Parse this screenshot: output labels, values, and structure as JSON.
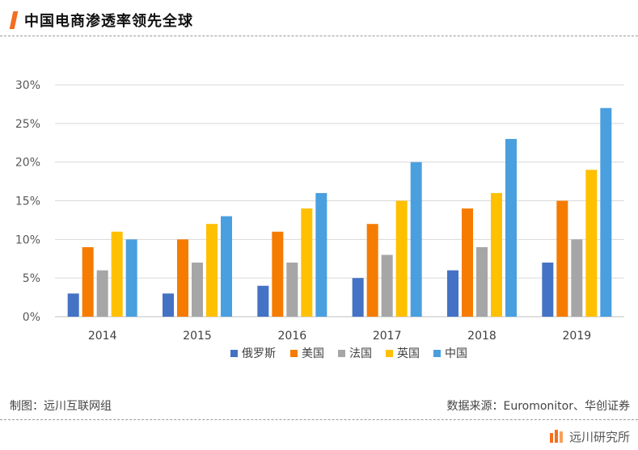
{
  "header": {
    "title": "中国电商渗透率领先全球"
  },
  "footer": {
    "made_by": "制图：远川互联网组",
    "source": "数据来源：Euromonitor、华创证券",
    "brand": "远川研究所"
  },
  "colors": {
    "accent": "#f36f21",
    "series": [
      "#4472c4",
      "#f57c00",
      "#a6a6a6",
      "#ffc000",
      "#4a9fdf"
    ]
  },
  "chart_data": {
    "type": "bar",
    "title": "",
    "xlabel": "",
    "ylabel": "",
    "ylim": [
      0,
      30
    ],
    "yticks": [
      "0%",
      "5%",
      "10%",
      "15%",
      "20%",
      "25%",
      "30%"
    ],
    "grid": true,
    "legend_position": "bottom",
    "categories": [
      "2014",
      "2015",
      "2016",
      "2017",
      "2018",
      "2019"
    ],
    "series": [
      {
        "name": "俄罗斯",
        "values": [
          3,
          3,
          4,
          5,
          6,
          7
        ]
      },
      {
        "name": "美国",
        "values": [
          9,
          10,
          11,
          12,
          14,
          15
        ]
      },
      {
        "name": "法国",
        "values": [
          6,
          7,
          7,
          8,
          9,
          10
        ]
      },
      {
        "name": "英国",
        "values": [
          11,
          12,
          14,
          15,
          16,
          19
        ]
      },
      {
        "name": "中国",
        "values": [
          10,
          13,
          16,
          20,
          23,
          27
        ]
      }
    ]
  }
}
